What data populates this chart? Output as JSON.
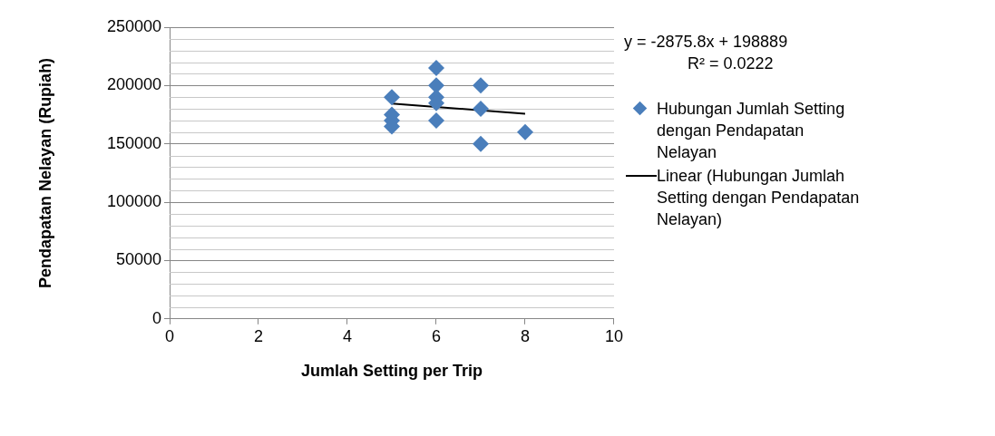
{
  "chart_data": {
    "type": "scatter",
    "xlabel": "Jumlah Setting per Trip",
    "ylabel": "Pendapatan Nelayan (Rupiah)",
    "xlim": [
      0,
      10
    ],
    "xticks": [
      0,
      2,
      4,
      6,
      8,
      10
    ],
    "ylim": [
      0,
      250000
    ],
    "yticks": [
      0,
      50000,
      100000,
      150000,
      200000,
      250000
    ],
    "grid": "y",
    "legend": "right",
    "marker": "diamond",
    "annotations": [
      "y = -2875.8x + 198889",
      "R² = 0.0222"
    ],
    "series": [
      {
        "name": "Hubungan Jumlah Setting dengan Pendapatan Nelayan",
        "color": "#4a7ebb",
        "x": [
          5,
          5,
          5,
          5,
          6,
          6,
          6,
          6,
          6,
          7,
          7,
          7,
          8
        ],
        "values": [
          190000,
          175000,
          170000,
          165000,
          215000,
          200000,
          190000,
          185000,
          170000,
          200000,
          180000,
          150000,
          160000
        ]
      },
      {
        "name": "Linear (Hubungan Jumlah Setting dengan Pendapatan Nelayan)",
        "type": "line",
        "color": "#000000",
        "marker": "none",
        "x": [
          5,
          8
        ],
        "values": [
          184500,
          175900
        ]
      }
    ]
  }
}
